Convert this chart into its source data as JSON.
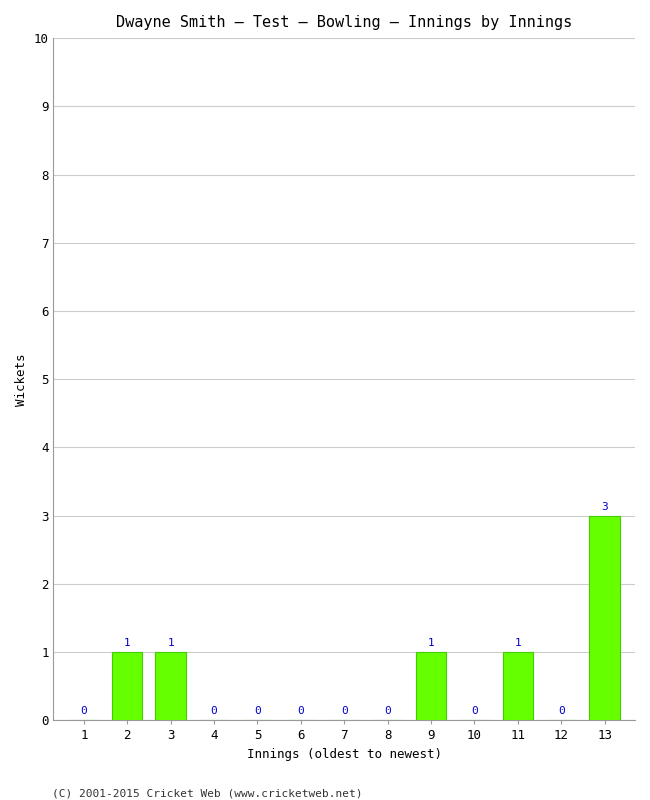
{
  "title": "Dwayne Smith – Test – Bowling – Innings by Innings",
  "xlabel": "Innings (oldest to newest)",
  "ylabel": "Wickets",
  "innings": [
    1,
    2,
    3,
    4,
    5,
    6,
    7,
    8,
    9,
    10,
    11,
    12,
    13
  ],
  "wickets": [
    0,
    1,
    1,
    0,
    0,
    0,
    0,
    0,
    1,
    0,
    1,
    0,
    3
  ],
  "bar_color": "#66ff00",
  "bar_edge_color": "#44cc00",
  "ylim": [
    0,
    10
  ],
  "yticks": [
    0,
    1,
    2,
    3,
    4,
    5,
    6,
    7,
    8,
    9,
    10
  ],
  "label_color": "#0000cc",
  "label_fontsize": 8,
  "title_fontsize": 11,
  "axis_fontsize": 9,
  "tick_fontsize": 9,
  "footer_text": "(C) 2001-2015 Cricket Web (www.cricketweb.net)",
  "footer_fontsize": 8,
  "background_color": "#ffffff",
  "plot_bg_color": "#ffffff",
  "grid_color": "#cccccc"
}
